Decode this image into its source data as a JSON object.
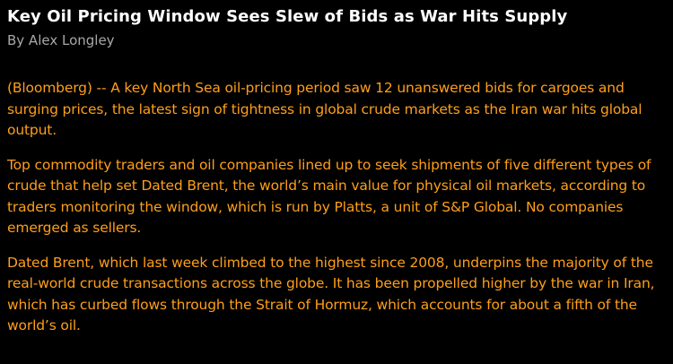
{
  "article": {
    "headline": "Key Oil Pricing Window Sees Slew of Bids as War Hits Supply",
    "byline": "By Alex Longley",
    "paragraphs": [
      "(Bloomberg) -- A key North Sea oil-pricing period saw 12 unanswered bids for cargoes and surging prices, the latest sign of tightness in global crude markets as the Iran war hits global output.",
      "Top commodity traders and oil companies lined up to seek shipments of five different types of crude that help set Dated Brent, the world’s main value for physical oil markets, according to traders monitoring the window, which is run by Platts, a unit of S&P Global. No companies emerged as sellers.",
      "Dated Brent, which last week climbed to the highest since 2008, underpins the majority of the real-world crude transactions across the globe. It has been propelled higher by the war in Iran, which has curbed flows through the Strait of Hormuz, which accounts for about a fifth of the world’s oil."
    ]
  },
  "colors": {
    "background": "#000000",
    "headline": "#ffffff",
    "byline": "#a8a8a8",
    "body_text": "#ff9f1a"
  }
}
